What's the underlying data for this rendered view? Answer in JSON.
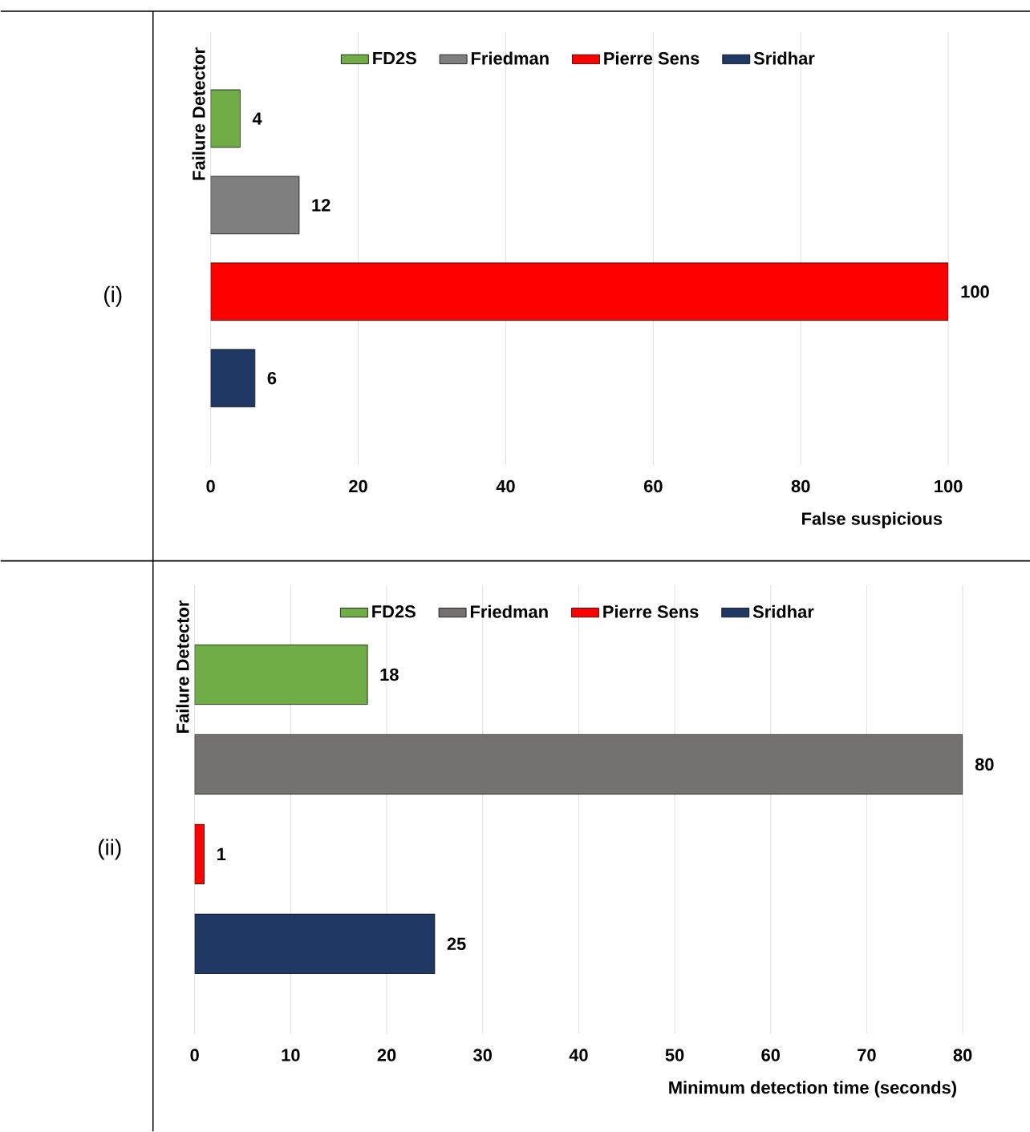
{
  "chart_data": [
    {
      "type": "bar",
      "orientation": "horizontal",
      "categories": [
        null
      ],
      "xlabel": "False suspicious",
      "ylabel": "Failure Detector",
      "annotations": [
        "(i)"
      ],
      "xlim": [
        0,
        100
      ],
      "xticks": [
        0,
        20,
        40,
        60,
        80,
        100
      ],
      "grid": "x",
      "legend": "top",
      "data_labels": true,
      "series": [
        {
          "name": "FD2S",
          "color": "#70ad47",
          "values": [
            4
          ]
        },
        {
          "name": "Friedman",
          "color": "#7f7f7f",
          "values": [
            12
          ]
        },
        {
          "name": "Pierre Sens",
          "color": "#ff0000",
          "values": [
            100
          ]
        },
        {
          "name": "Sridhar",
          "color": "#203864",
          "values": [
            6
          ]
        }
      ]
    },
    {
      "type": "bar",
      "orientation": "horizontal",
      "categories": [
        null
      ],
      "xlabel": "Minimum detection time (seconds)",
      "ylabel": "Failure Detector",
      "annotations": [
        "(ii)"
      ],
      "xlim": [
        0,
        80
      ],
      "xticks": [
        0,
        10,
        20,
        30,
        40,
        50,
        60,
        70,
        80
      ],
      "grid": "x",
      "legend": "top",
      "data_labels": true,
      "series": [
        {
          "name": "FD2S",
          "color": "#70ad47",
          "values": [
            18
          ]
        },
        {
          "name": "Friedman",
          "color": "#767171",
          "values": [
            80
          ]
        },
        {
          "name": "Pierre Sens",
          "color": "#ff0000",
          "values": [
            1
          ]
        },
        {
          "name": "Sridhar",
          "color": "#203864",
          "values": [
            25
          ]
        }
      ]
    }
  ]
}
